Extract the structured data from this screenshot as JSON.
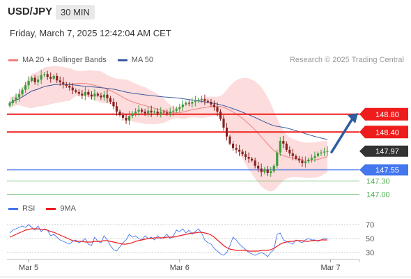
{
  "header": {
    "pair": "USD/JPY",
    "timeframe": "30 MIN",
    "datetime": "Friday, March 7, 2025 12:42:04 AM CET",
    "credit": "Research © 2025 Trading Central"
  },
  "colors": {
    "up": "#3a9c3a",
    "down": "#8a2020",
    "bollinger_band": "#fbd0d0",
    "ma20": "#f08080",
    "ma50": "#3a5aa0",
    "resistance": "#ee1c1c",
    "support": "#4477ee",
    "target": "#4caf50",
    "current": "#333333",
    "arrow": "#2c5d9e",
    "rsi": "#4477ee",
    "rsi_ma": "#ee1c1c"
  },
  "chart_data": [
    {
      "type": "candlestick",
      "legend": [
        {
          "name": "MA 20 + Bollinger Bands",
          "color": "#f08080"
        },
        {
          "name": "MA 50",
          "color": "#3a5aa0"
        }
      ],
      "x_ticks": [
        {
          "bar": 6,
          "label": "Mar 5"
        },
        {
          "bar": 54,
          "label": "Mar 6"
        },
        {
          "bar": 102,
          "label": "Mar 7"
        }
      ],
      "y_range": [
        146.9,
        149.8
      ],
      "levels": [
        {
          "value": 148.8,
          "label": "148.80",
          "kind": "resistance"
        },
        {
          "value": 148.4,
          "label": "148.40",
          "kind": "resistance"
        },
        {
          "value": 147.97,
          "label": "147.97",
          "kind": "current"
        },
        {
          "value": 147.55,
          "label": "147.55",
          "kind": "support"
        },
        {
          "value": 147.3,
          "label": "147.30",
          "kind": "target"
        },
        {
          "value": 147.0,
          "label": "147.00",
          "kind": "target"
        }
      ],
      "projection": {
        "from": 147.95,
        "to": 148.78
      },
      "closes": [
        149.05,
        149.12,
        149.18,
        149.25,
        149.35,
        149.45,
        149.55,
        149.62,
        149.52,
        149.58,
        149.68,
        149.7,
        149.64,
        149.6,
        149.66,
        149.56,
        149.52,
        149.48,
        149.44,
        149.4,
        149.34,
        149.3,
        149.26,
        149.22,
        149.3,
        149.24,
        149.2,
        149.26,
        149.22,
        149.18,
        149.24,
        149.16,
        149.08,
        148.98,
        148.86,
        148.78,
        148.72,
        148.66,
        148.76,
        148.82,
        148.86,
        148.9,
        148.86,
        148.82,
        148.88,
        148.84,
        148.86,
        148.82,
        148.86,
        148.84,
        148.82,
        148.86,
        148.88,
        148.92,
        148.96,
        149.02,
        149.06,
        149.04,
        149.08,
        149.1,
        149.12,
        149.14,
        149.1,
        149.08,
        149.02,
        148.96,
        148.86,
        148.7,
        148.5,
        148.3,
        148.14,
        148.04,
        148.0,
        147.96,
        147.9,
        147.84,
        147.8,
        147.76,
        147.64,
        147.58,
        147.5,
        147.56,
        147.48,
        147.52,
        147.64,
        147.94,
        148.2,
        148.14,
        148.0,
        147.92,
        147.86,
        147.8,
        147.76,
        147.7,
        147.74,
        147.78,
        147.82,
        147.86,
        147.92,
        147.94,
        147.96,
        147.97
      ]
    },
    {
      "type": "line",
      "legend": [
        {
          "name": "RSI",
          "color": "#4477ee"
        },
        {
          "name": "9MA",
          "color": "#ee1c1c"
        }
      ],
      "y_range": [
        20,
        80
      ],
      "y_ticks": [
        70,
        50,
        30
      ],
      "series": [
        {
          "name": "RSI",
          "values": [
            58,
            62,
            64,
            66,
            68,
            66,
            70,
            66,
            62,
            68,
            60,
            64,
            62,
            54,
            56,
            52,
            48,
            46,
            44,
            42,
            46,
            48,
            44,
            46,
            50,
            42,
            40,
            52,
            46,
            44,
            54,
            48,
            40,
            34,
            32,
            38,
            44,
            48,
            56,
            52,
            54,
            50,
            48,
            54,
            50,
            52,
            48,
            54,
            50,
            52,
            56,
            50,
            54,
            62,
            60,
            64,
            58,
            62,
            56,
            60,
            64,
            58,
            48,
            44,
            42,
            36,
            32,
            28,
            26,
            30,
            40,
            52,
            48,
            42,
            38,
            34,
            30,
            28,
            26,
            28,
            30,
            28,
            24,
            30,
            34,
            56,
            58,
            48,
            46,
            44,
            42,
            48,
            46,
            44,
            48,
            50,
            48,
            48,
            46,
            48,
            50,
            50
          ]
        },
        {
          "name": "9MA",
          "values": [
            52,
            54,
            56,
            58,
            60,
            62,
            63,
            64,
            64,
            64,
            63,
            63,
            62,
            60,
            59,
            57,
            55,
            53,
            51,
            49,
            47,
            46,
            46,
            46,
            45,
            45,
            45,
            46,
            46,
            46,
            47,
            47,
            46,
            45,
            44,
            43,
            42,
            42,
            43,
            44,
            46,
            47,
            48,
            49,
            50,
            50,
            51,
            51,
            51,
            51,
            52,
            52,
            52,
            53,
            54,
            55,
            56,
            57,
            58,
            58,
            59,
            59,
            58,
            57,
            55,
            52,
            48,
            44,
            40,
            37,
            35,
            34,
            33,
            33,
            33,
            33,
            32,
            32,
            32,
            32,
            33,
            33,
            33,
            34,
            36,
            39,
            42,
            44,
            45,
            46,
            46,
            47,
            47,
            47,
            46,
            46,
            47,
            47,
            47,
            48,
            48,
            48
          ]
        }
      ]
    }
  ]
}
